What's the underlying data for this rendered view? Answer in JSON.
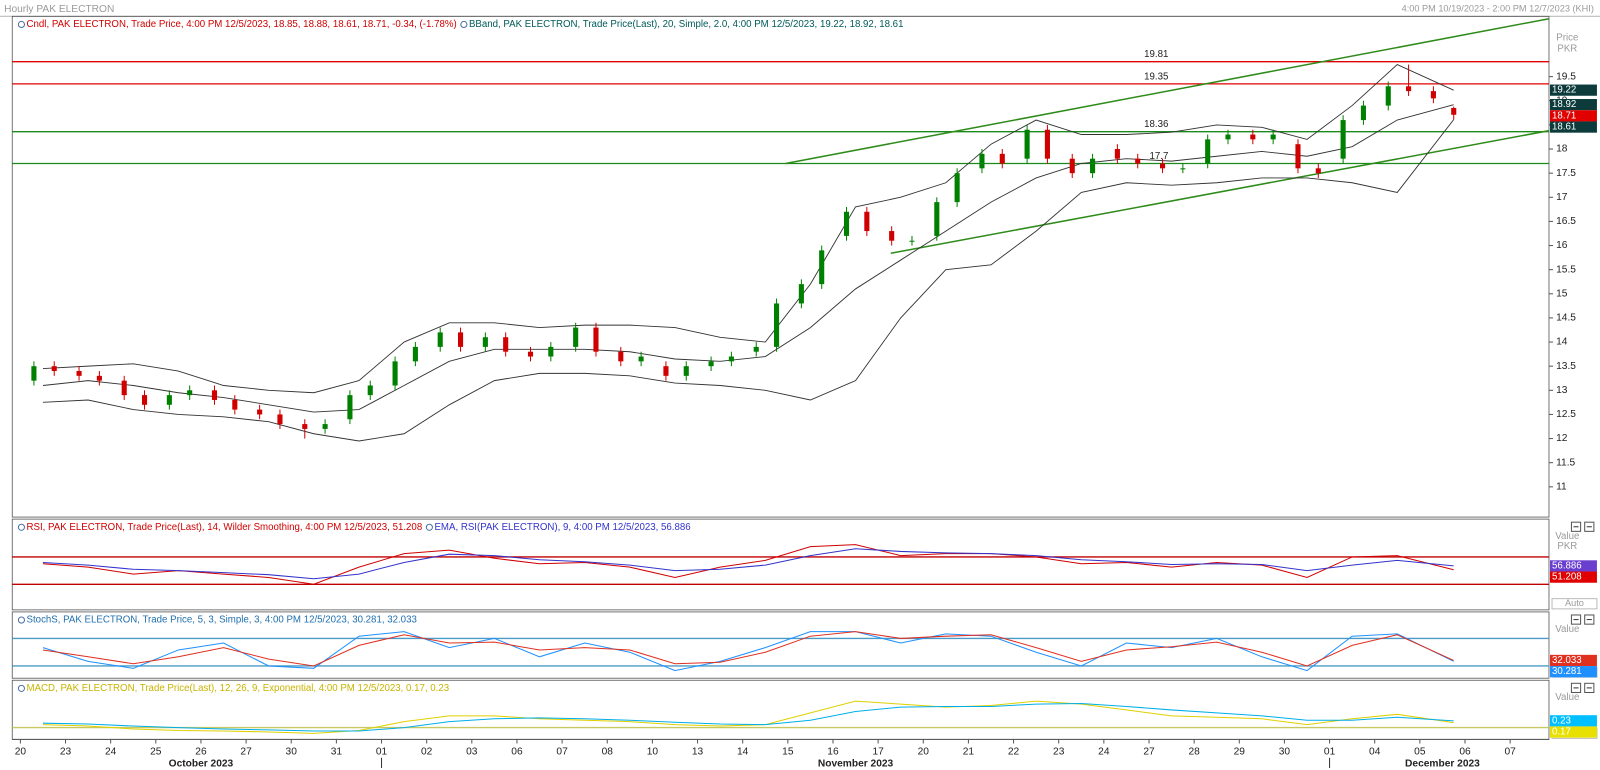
{
  "window": {
    "title": "Hourly PAK ELECTRON",
    "range": "4:00 PM 10/19/2023 - 2:00 PM 12/7/2023 (KHI)"
  },
  "chart_data": [
    {
      "type": "candlestick",
      "legend": [
        {
          "text": "Cndl, PAK ELECTRON, Trade Price, 4:00 PM 12/5/2023, 18.85, 18.88, 18.61, 18.71, -0.34, (-1.78%)",
          "color": "#d00000"
        },
        {
          "text": "BBand, PAK ELECTRON, Trade Price(Last), 20, Simple, 2.0, 4:00 PM 12/5/2023, 19.22, 18.92, 18.61",
          "color": "#005a5a"
        }
      ],
      "ylabel": "Price",
      "yunit": "PKR",
      "xlim": [
        -0.18,
        33.86
      ],
      "xticks": [
        {
          "value": 0,
          "label": "20"
        },
        {
          "value": 1,
          "label": "23"
        },
        {
          "value": 2,
          "label": "24"
        },
        {
          "value": 3,
          "label": "25"
        },
        {
          "value": 4,
          "label": "26"
        },
        {
          "value": 5,
          "label": "27"
        },
        {
          "value": 6,
          "label": "30"
        },
        {
          "value": 7,
          "label": "31"
        },
        {
          "value": 8,
          "label": "01"
        },
        {
          "value": 9,
          "label": "02"
        },
        {
          "value": 10,
          "label": "03"
        },
        {
          "value": 11,
          "label": "06"
        },
        {
          "value": 12,
          "label": "07"
        },
        {
          "value": 13,
          "label": "08"
        },
        {
          "value": 14,
          "label": "10"
        },
        {
          "value": 15,
          "label": "13"
        },
        {
          "value": 16,
          "label": "14"
        },
        {
          "value": 17,
          "label": "15"
        },
        {
          "value": 18,
          "label": "16"
        },
        {
          "value": 19,
          "label": "17"
        },
        {
          "value": 20,
          "label": "20"
        },
        {
          "value": 21,
          "label": "21"
        },
        {
          "value": 22,
          "label": "22"
        },
        {
          "value": 23,
          "label": "23"
        },
        {
          "value": 24,
          "label": "24"
        },
        {
          "value": 25,
          "label": "27"
        },
        {
          "value": 26,
          "label": "28"
        },
        {
          "value": 27,
          "label": "29"
        },
        {
          "value": 28,
          "label": "30"
        },
        {
          "value": 29,
          "label": "01"
        },
        {
          "value": 30,
          "label": "04"
        },
        {
          "value": 31,
          "label": "05"
        },
        {
          "value": 32,
          "label": "06"
        },
        {
          "value": 33,
          "label": "07"
        }
      ],
      "months": [
        {
          "label": "October 2023",
          "start": 0
        },
        {
          "label": "November 2023",
          "start": 8
        },
        {
          "label": "December 2023",
          "start": 29
        }
      ],
      "ylim": [
        10.5,
        20.75
      ],
      "yticks": [
        11,
        11.5,
        12,
        12.5,
        13,
        13.5,
        14,
        14.5,
        15,
        15.5,
        16,
        16.5,
        17,
        17.5,
        18,
        18.5,
        19,
        19.5
      ],
      "up_color": "#008000",
      "down_color": "#d00000",
      "close_label_color": "#e00000",
      "x": [
        0.3,
        0.75,
        1.3,
        1.75,
        2.3,
        2.75,
        3.3,
        3.75,
        4.3,
        4.75,
        5.3,
        5.75,
        6.3,
        6.75,
        7.3,
        7.75,
        8.3,
        8.75,
        9.3,
        9.75,
        10.3,
        10.75,
        11.3,
        11.75,
        12.3,
        12.75,
        13.3,
        13.75,
        14.3,
        14.75,
        15.3,
        15.75,
        16.3,
        16.75,
        17.3,
        17.75,
        18.3,
        18.75,
        19.3,
        19.75,
        20.3,
        20.75,
        21.3,
        21.75,
        22.3,
        22.75,
        23.3,
        23.75,
        24.3,
        24.75,
        25.3,
        25.75,
        26.3,
        26.75,
        27.3,
        27.75,
        28.3,
        28.75,
        29.3,
        29.75,
        30.3,
        30.75,
        31.3,
        31.75
      ],
      "open": [
        13.2,
        13.5,
        13.4,
        13.3,
        13.2,
        12.9,
        12.7,
        12.9,
        13.0,
        12.8,
        12.6,
        12.5,
        12.3,
        12.2,
        12.4,
        12.9,
        13.1,
        13.6,
        13.9,
        14.2,
        13.9,
        14.1,
        13.8,
        13.7,
        13.9,
        14.3,
        13.8,
        13.6,
        13.5,
        13.3,
        13.5,
        13.6,
        13.8,
        13.9,
        14.8,
        15.2,
        16.2,
        16.7,
        16.3,
        16.1,
        16.2,
        16.9,
        17.6,
        17.9,
        17.8,
        18.4,
        17.8,
        17.5,
        18.0,
        17.8,
        17.7,
        17.6,
        17.7,
        18.2,
        18.3,
        18.2,
        18.1,
        17.6,
        17.8,
        18.6,
        18.9,
        19.3,
        19.2,
        18.85
      ],
      "high": [
        13.6,
        13.6,
        13.5,
        13.4,
        13.3,
        13.0,
        13.0,
        13.1,
        13.1,
        12.9,
        12.7,
        12.6,
        12.4,
        12.4,
        13.0,
        13.2,
        13.7,
        14.0,
        14.3,
        14.3,
        14.2,
        14.2,
        13.9,
        14.0,
        14.4,
        14.4,
        13.9,
        13.8,
        13.6,
        13.6,
        13.7,
        13.8,
        14.0,
        14.9,
        15.3,
        16.0,
        16.8,
        16.8,
        16.4,
        16.2,
        17.0,
        17.6,
        18.0,
        18.0,
        18.5,
        18.5,
        17.9,
        17.9,
        18.1,
        17.9,
        17.8,
        17.7,
        18.3,
        18.4,
        18.4,
        18.4,
        18.2,
        17.7,
        18.7,
        19.0,
        19.4,
        19.75,
        19.3,
        18.88
      ],
      "low": [
        13.1,
        13.3,
        13.2,
        13.1,
        12.8,
        12.6,
        12.6,
        12.8,
        12.7,
        12.5,
        12.4,
        12.2,
        12.0,
        12.1,
        12.3,
        12.8,
        13.0,
        13.5,
        13.8,
        13.8,
        13.8,
        13.7,
        13.6,
        13.6,
        13.8,
        13.7,
        13.5,
        13.5,
        13.2,
        13.2,
        13.4,
        13.5,
        13.7,
        13.8,
        14.7,
        15.1,
        16.1,
        16.2,
        16.0,
        16.0,
        16.1,
        16.8,
        17.5,
        17.6,
        17.7,
        17.7,
        17.4,
        17.4,
        17.7,
        17.6,
        17.5,
        17.5,
        17.6,
        18.1,
        18.1,
        18.1,
        17.5,
        17.4,
        17.7,
        18.5,
        18.8,
        19.1,
        18.95,
        18.61
      ],
      "close": [
        13.5,
        13.4,
        13.3,
        13.2,
        12.9,
        12.7,
        12.9,
        13.0,
        12.8,
        12.6,
        12.5,
        12.3,
        12.2,
        12.3,
        12.9,
        13.1,
        13.6,
        13.9,
        14.2,
        13.9,
        14.1,
        13.8,
        13.7,
        13.9,
        14.3,
        13.8,
        13.6,
        13.7,
        13.3,
        13.5,
        13.6,
        13.7,
        13.9,
        14.8,
        15.2,
        15.9,
        16.7,
        16.3,
        16.1,
        16.1,
        16.9,
        17.5,
        17.9,
        17.7,
        18.4,
        17.8,
        17.5,
        17.8,
        17.8,
        17.7,
        17.6,
        17.6,
        18.2,
        18.3,
        18.2,
        18.3,
        17.6,
        17.5,
        18.6,
        18.9,
        19.3,
        19.2,
        19.05,
        18.71
      ],
      "bands": {
        "color": "#333333",
        "label_color": "#0d3b3b",
        "x": [
          0.5,
          1.5,
          2.5,
          3.5,
          4.5,
          5.5,
          6.5,
          7.5,
          8.5,
          9.5,
          10.5,
          11.5,
          12.5,
          13.5,
          14.5,
          15.5,
          16.5,
          17.5,
          18.5,
          19.5,
          20.5,
          21.5,
          22.5,
          23.5,
          24.5,
          25.5,
          26.5,
          27.5,
          28.5,
          29.5,
          30.5,
          31.75
        ],
        "upper": [
          13.45,
          13.5,
          13.55,
          13.4,
          13.1,
          13.0,
          12.95,
          13.2,
          14.0,
          14.4,
          14.4,
          14.3,
          14.35,
          14.35,
          14.3,
          14.1,
          14.0,
          15.2,
          16.8,
          17.0,
          17.3,
          18.1,
          18.6,
          18.3,
          18.3,
          18.35,
          18.5,
          18.45,
          18.2,
          18.9,
          19.75,
          19.22
        ],
        "middle": [
          13.1,
          13.2,
          13.1,
          12.95,
          12.85,
          12.7,
          12.55,
          12.6,
          13.1,
          13.6,
          13.85,
          13.85,
          13.85,
          13.8,
          13.65,
          13.6,
          13.7,
          14.3,
          15.1,
          15.7,
          16.3,
          16.9,
          17.4,
          17.7,
          17.8,
          17.75,
          17.85,
          17.95,
          17.85,
          18.05,
          18.6,
          18.92
        ],
        "lower": [
          12.75,
          12.8,
          12.6,
          12.5,
          12.45,
          12.35,
          12.1,
          11.95,
          12.1,
          12.7,
          13.2,
          13.35,
          13.35,
          13.3,
          13.15,
          13.1,
          13.0,
          12.8,
          13.2,
          14.5,
          15.5,
          15.6,
          16.3,
          17.1,
          17.3,
          17.25,
          17.3,
          17.4,
          17.4,
          17.3,
          17.1,
          18.61
        ]
      },
      "levels": [
        {
          "value": 19.81,
          "color": "#e00000"
        },
        {
          "value": 19.35,
          "color": "#e00000"
        },
        {
          "value": 18.36,
          "color": "#1a8a1a"
        },
        {
          "value": 17.7,
          "color": "#1a8a1a"
        }
      ],
      "level_labels": true,
      "trendlines": [
        {
          "x": [
            16.95,
            33.86
          ],
          "y": [
            17.7,
            20.7
          ],
          "color": "#2e8b1a"
        },
        {
          "x": [
            19.28,
            33.86
          ],
          "y": [
            15.84,
            18.38
          ],
          "color": "#2e8b1a"
        }
      ]
    },
    {
      "type": "line",
      "legend": [
        {
          "text": "RSI, PAK ELECTRON, Trade Price(Last), 14, Wilder Smoothing, 4:00 PM 12/5/2023, 51.208",
          "color": "#d00000"
        },
        {
          "text": "EMA, RSI(PAK ELECTRON), 9, 4:00 PM 12/5/2023, 56.886",
          "color": "#3333cc"
        }
      ],
      "ylabel": "Value",
      "yunit": "PKR",
      "scale_mode": "Auto",
      "ylim": [
        0,
        100
      ],
      "levels": [
        {
          "value": 70,
          "color": "#c00000"
        },
        {
          "value": 30,
          "color": "#c00000"
        }
      ],
      "x": [
        0.5,
        1.5,
        2.5,
        3.5,
        4.5,
        5.5,
        6.5,
        7.5,
        8.5,
        9.5,
        10.5,
        11.5,
        12.5,
        13.5,
        14.5,
        15.5,
        16.5,
        17.5,
        18.5,
        19.5,
        20.5,
        21.5,
        22.5,
        23.5,
        24.5,
        25.5,
        26.5,
        27.5,
        28.5,
        29.5,
        30.5,
        31.75
      ],
      "series": [
        {
          "color": "#d00000",
          "label_color": "#e00000",
          "values": [
            60,
            55,
            45,
            50,
            45,
            40,
            30,
            55,
            75,
            80,
            68,
            60,
            62,
            55,
            40,
            55,
            65,
            85,
            88,
            72,
            75,
            75,
            70,
            60,
            62,
            55,
            62,
            58,
            40,
            70,
            72,
            51.208
          ]
        },
        {
          "color": "#3333cc",
          "label_color": "#6a3fd0",
          "values": [
            62,
            58,
            52,
            50,
            47,
            44,
            38,
            45,
            62,
            74,
            72,
            66,
            63,
            58,
            50,
            52,
            58,
            72,
            82,
            78,
            76,
            75,
            72,
            66,
            63,
            59,
            60,
            59,
            50,
            58,
            65,
            56.886
          ]
        }
      ]
    },
    {
      "type": "line",
      "legend": [
        {
          "text": "StochS, PAK ELECTRON, Trade Price, 5, 3, Simple, 3, 4:00 PM 12/5/2023, 30.281, 32.033",
          "color": "#1f6fb0"
        }
      ],
      "ylabel": "Value",
      "scale_mode": "Auto",
      "ylim": [
        0,
        100
      ],
      "levels": [
        {
          "value": 80,
          "color": "#4a9bc8"
        },
        {
          "value": 20,
          "color": "#4a9bc8"
        }
      ],
      "x": [
        0.5,
        1.5,
        2.5,
        3.5,
        4.5,
        5.5,
        6.5,
        7.5,
        8.5,
        9.5,
        10.5,
        11.5,
        12.5,
        13.5,
        14.5,
        15.5,
        16.5,
        17.5,
        18.5,
        19.5,
        20.5,
        21.5,
        22.5,
        23.5,
        24.5,
        25.5,
        26.5,
        27.5,
        28.5,
        29.5,
        30.5,
        31.75
      ],
      "series": [
        {
          "color": "#1e90ff",
          "label_color": "#1e90ff",
          "values": [
            60,
            30,
            15,
            55,
            70,
            20,
            15,
            85,
            95,
            60,
            80,
            40,
            70,
            50,
            10,
            30,
            60,
            95,
            95,
            70,
            90,
            85,
            50,
            20,
            70,
            60,
            80,
            40,
            10,
            85,
            90,
            30.281
          ]
        },
        {
          "color": "#e03020",
          "label_color": "#e03020",
          "values": [
            55,
            40,
            25,
            40,
            60,
            35,
            20,
            65,
            88,
            70,
            72,
            55,
            60,
            55,
            25,
            28,
            50,
            85,
            95,
            80,
            85,
            88,
            60,
            30,
            55,
            62,
            72,
            50,
            20,
            65,
            88,
            32.033
          ]
        }
      ]
    },
    {
      "type": "line",
      "legend": [
        {
          "text": "MACD, PAK ELECTRON, Trade Price(Last), 12, 26, 9, Exponential, 4:00 PM 12/5/2023, 0.17, 0.23",
          "color": "#c8b400"
        }
      ],
      "ylabel": "Value",
      "scale_mode": "Auto",
      "ylim": [
        -0.3,
        1.3
      ],
      "levels": [
        {
          "value": 0,
          "color": "#c8c860"
        }
      ],
      "x": [
        0.5,
        1.5,
        2.5,
        3.5,
        4.5,
        5.5,
        6.5,
        7.5,
        8.5,
        9.5,
        10.5,
        11.5,
        12.5,
        13.5,
        14.5,
        15.5,
        16.5,
        17.5,
        18.5,
        19.5,
        20.5,
        21.5,
        22.5,
        23.5,
        24.5,
        25.5,
        26.5,
        27.5,
        28.5,
        29.5,
        30.5,
        31.75
      ],
      "series": [
        {
          "color": "#e0d000",
          "label_color": "#e8e000",
          "values": [
            0.1,
            0.05,
            -0.05,
            -0.1,
            -0.12,
            -0.15,
            -0.2,
            -0.1,
            0.2,
            0.4,
            0.4,
            0.3,
            0.25,
            0.2,
            0.1,
            0.05,
            0.1,
            0.5,
            0.9,
            0.8,
            0.7,
            0.75,
            0.9,
            0.8,
            0.6,
            0.4,
            0.35,
            0.3,
            0.1,
            0.3,
            0.45,
            0.17
          ]
        },
        {
          "color": "#00aee8",
          "label_color": "#00bfff",
          "values": [
            0.15,
            0.12,
            0.05,
            0,
            -0.05,
            -0.08,
            -0.12,
            -0.12,
            0,
            0.2,
            0.3,
            0.33,
            0.3,
            0.25,
            0.18,
            0.12,
            0.1,
            0.25,
            0.55,
            0.7,
            0.72,
            0.72,
            0.8,
            0.82,
            0.72,
            0.6,
            0.5,
            0.4,
            0.25,
            0.25,
            0.35,
            0.23
          ]
        }
      ]
    }
  ]
}
